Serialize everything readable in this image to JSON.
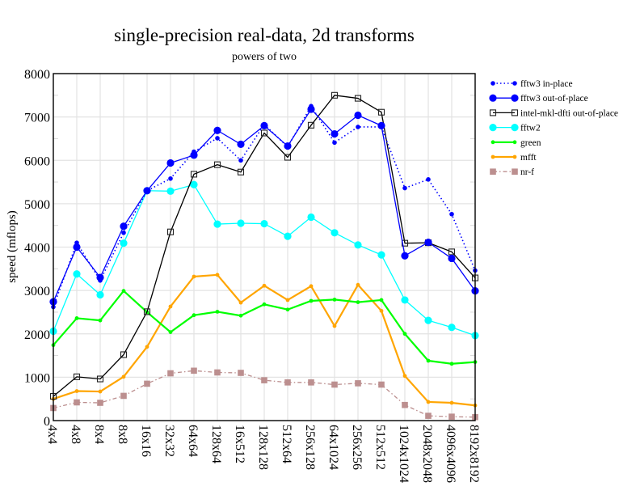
{
  "chart_data": {
    "type": "line",
    "title": "single-precision real-data, 2d transforms",
    "subtitle": "powers of two",
    "xlabel": "",
    "ylabel": "speed (mflops)",
    "ylim": [
      0,
      8000
    ],
    "yticks": [
      "0",
      "1000",
      "2000",
      "3000",
      "4000",
      "5000",
      "6000",
      "7000",
      "8000"
    ],
    "grid": true,
    "legend_position": "right",
    "categories": [
      "4x4",
      "4x8",
      "8x4",
      "8x8",
      "16x16",
      "32x32",
      "64x64",
      "128x64",
      "16x512",
      "128x128",
      "512x64",
      "256x128",
      "64x1024",
      "256x256",
      "512x512",
      "1024x1024",
      "2048x2048",
      "4096x4096",
      "8192x8192"
    ],
    "series": [
      {
        "name": "fftw3 in-place",
        "color": "#0000ff",
        "line": "dotted",
        "marker": "small-circle",
        "values": [
          2620,
          4100,
          3230,
          4330,
          5300,
          5580,
          6200,
          6510,
          6000,
          6830,
          6310,
          7250,
          6410,
          6770,
          6770,
          5360,
          5560,
          4760,
          3460
        ]
      },
      {
        "name": "fftw3 out-of-place",
        "color": "#0000ff",
        "line": "solid",
        "marker": "circle",
        "values": [
          2740,
          4000,
          3300,
          4480,
          5300,
          5940,
          6120,
          6690,
          6370,
          6800,
          6330,
          7180,
          6610,
          7040,
          6800,
          3800,
          4110,
          3740,
          2990
        ]
      },
      {
        "name": "intel-mkl-dfti out-of-place",
        "color": "#000000",
        "line": "solid",
        "marker": "open-square",
        "values": [
          560,
          1010,
          960,
          1520,
          2510,
          4350,
          5680,
          5900,
          5730,
          6630,
          6070,
          6810,
          7500,
          7430,
          7110,
          4090,
          4100,
          3890,
          3290
        ]
      },
      {
        "name": "fftw2",
        "color": "#00ffff",
        "line": "solid",
        "marker": "circle",
        "values": [
          2060,
          3380,
          2900,
          4090,
          5300,
          5290,
          5440,
          4530,
          4550,
          4540,
          4250,
          4690,
          4330,
          4050,
          3820,
          2780,
          2310,
          2150,
          1960
        ]
      },
      {
        "name": "green",
        "color": "#00ff00",
        "line": "solid",
        "marker": "dot",
        "values": [
          1740,
          2360,
          2310,
          2990,
          2500,
          2040,
          2430,
          2510,
          2420,
          2680,
          2560,
          2760,
          2790,
          2730,
          2780,
          2000,
          1380,
          1310,
          1350
        ]
      },
      {
        "name": "mfft",
        "color": "#ffa500",
        "line": "solid",
        "marker": "dot",
        "values": [
          500,
          680,
          670,
          1010,
          1700,
          2630,
          3320,
          3360,
          2720,
          3110,
          2780,
          3100,
          2180,
          3130,
          2530,
          1030,
          430,
          410,
          350
        ]
      },
      {
        "name": "nr-f",
        "color": "#bc8f8f",
        "line": "dashdot",
        "marker": "filled-square",
        "values": [
          290,
          420,
          410,
          570,
          850,
          1090,
          1150,
          1110,
          1100,
          930,
          880,
          880,
          830,
          860,
          830,
          360,
          110,
          90,
          80
        ]
      }
    ]
  }
}
